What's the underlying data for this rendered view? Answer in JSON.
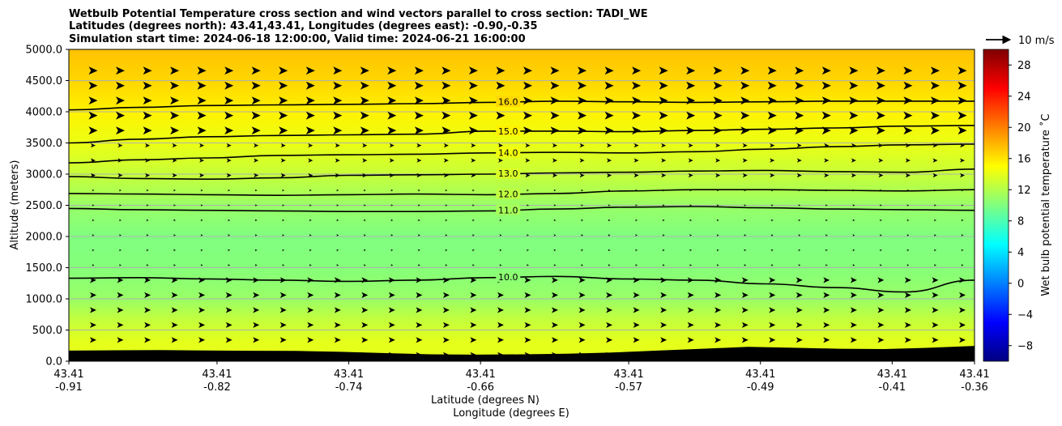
{
  "chart_data": {
    "type": "heatmap",
    "title_lines": [
      "Wetbulb Potential Temperature cross section and wind vectors parallel to cross section: TADI_WE",
      "Latitudes (degrees north): 43.41,43.41, Longitudes (degrees east): -0.90,-0.35",
      "Simulation start time: 2024-06-18 12:00:00, Valid time: 2024-06-21 16:00:00"
    ],
    "ylabel": "Altitude (meters)",
    "xlabel_lat": "Latitude (degrees N)",
    "xlabel_lon": "Longitude (degrees E)",
    "ylim": [
      0,
      5000
    ],
    "y_ticks": [
      "0.0",
      "500.0",
      "1000.0",
      "1500.0",
      "2000.0",
      "2500.0",
      "3000.0",
      "3500.0",
      "4000.0",
      "4500.0",
      "5000.0"
    ],
    "y_tick_values": [
      0,
      500,
      1000,
      1500,
      2000,
      2500,
      3000,
      3500,
      4000,
      4500,
      5000
    ],
    "x_ticks": [
      {
        "lat": "43.41",
        "lon": "-0.91"
      },
      {
        "lat": "43.41",
        "lon": "-0.82"
      },
      {
        "lat": "43.41",
        "lon": "-0.74"
      },
      {
        "lat": "43.41",
        "lon": "-0.66"
      },
      {
        "lat": "43.41",
        "lon": "-0.57"
      },
      {
        "lat": "43.41",
        "lon": "-0.49"
      },
      {
        "lat": "43.41",
        "lon": "-0.41"
      },
      {
        "lat": "43.41",
        "lon": "-0.36"
      }
    ],
    "x_tick_values": [
      -0.91,
      -0.82,
      -0.74,
      -0.66,
      -0.57,
      -0.49,
      -0.41,
      -0.36
    ],
    "xlim": [
      -0.91,
      -0.36
    ],
    "grid": "horizontal",
    "colorbar": {
      "label": "Wet bulb potential temperature $^\\circ$C",
      "label_text": "Wet bulb potential temperature ˚C",
      "range": [
        -10,
        30
      ],
      "ticks": [
        -8,
        -4,
        0,
        4,
        8,
        12,
        16,
        20,
        24,
        28
      ],
      "colormap": "jet"
    },
    "quiver_key": {
      "label": "10 m/s",
      "speed": 10
    },
    "contours": [
      {
        "level": 16,
        "label": "16.0",
        "alt": [
          4030,
          4070,
          4100,
          4110,
          4120,
          4130,
          4150,
          4170,
          4160,
          4150,
          4160,
          4170,
          4170,
          4170
        ]
      },
      {
        "level": 15,
        "label": "15.0",
        "alt": [
          3500,
          3560,
          3600,
          3620,
          3630,
          3640,
          3690,
          3690,
          3680,
          3700,
          3720,
          3740,
          3770,
          3780
        ]
      },
      {
        "level": 14,
        "label": "14.0",
        "alt": [
          3180,
          3230,
          3260,
          3300,
          3310,
          3320,
          3340,
          3350,
          3340,
          3360,
          3400,
          3440,
          3470,
          3480
        ]
      },
      {
        "level": 13,
        "label": "13.0",
        "alt": [
          2960,
          2930,
          2920,
          2940,
          2980,
          2990,
          3000,
          3020,
          3030,
          3050,
          3060,
          3040,
          3030,
          3080
        ]
      },
      {
        "level": 12,
        "label": "12.0",
        "alt": [
          2690,
          2680,
          2670,
          2660,
          2670,
          2680,
          2670,
          2690,
          2730,
          2750,
          2750,
          2740,
          2730,
          2750
        ]
      },
      {
        "level": 11,
        "label": "11.0",
        "alt": [
          2450,
          2430,
          2420,
          2410,
          2400,
          2400,
          2410,
          2440,
          2470,
          2480,
          2460,
          2440,
          2430,
          2420
        ]
      },
      {
        "level": 10,
        "label": "10.0",
        "alt": [
          1330,
          1340,
          1320,
          1300,
          1280,
          1300,
          1340,
          1360,
          1320,
          1300,
          1240,
          1180,
          1110,
          1300
        ]
      }
    ],
    "wind_u_ms": 10,
    "terrain_alt": [
      170,
      175,
      178,
      172,
      168,
      165,
      150,
      130,
      110,
      105,
      110,
      120,
      140,
      170,
      200,
      230,
      215,
      200,
      195,
      215,
      245
    ],
    "field": {
      "altitudes": [
        0,
        300,
        700,
        1000,
        1500,
        2000,
        2500,
        3000,
        3500,
        4000,
        4500,
        5000
      ],
      "values": [
        14.0,
        14.0,
        12.5,
        11.0,
        10.2,
        10.0,
        11.0,
        12.8,
        14.2,
        15.5,
        16.6,
        17.4
      ]
    }
  }
}
